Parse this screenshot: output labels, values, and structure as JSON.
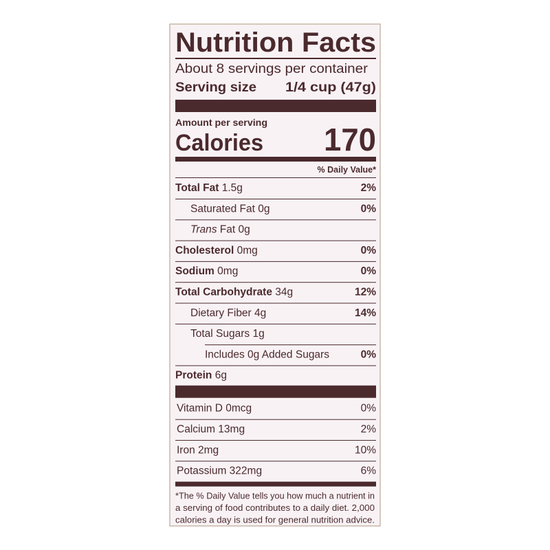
{
  "label": {
    "title": "Nutrition Facts",
    "servings": "About 8 servings per container",
    "serving_size_label": "Serving size",
    "serving_size_value": "1/4 cup (47g)",
    "amount_per_serving": "Amount per serving",
    "calories_label": "Calories",
    "calories_value": 170,
    "dv_header": "% Daily Value*",
    "nutrients": [
      {
        "name": "Total Fat",
        "amount": "1.5g",
        "dv": "2%",
        "bold": true,
        "indent": 0
      },
      {
        "name": "Saturated Fat",
        "amount": "0g",
        "dv": "0%",
        "bold": false,
        "indent": 1
      },
      {
        "name": "Trans",
        "amount": "Fat 0g",
        "bold": false,
        "italic": true,
        "indent": 1
      },
      {
        "name": "Cholesterol",
        "amount": "0mg",
        "dv": "0%",
        "bold": true,
        "indent": 0
      },
      {
        "name": "Sodium",
        "amount": "0mg",
        "dv": "0%",
        "bold": true,
        "indent": 0
      },
      {
        "name": "Total Carbohydrate",
        "amount": "34g",
        "dv": "12%",
        "bold": true,
        "indent": 0
      },
      {
        "name": "Dietary Fiber",
        "amount": "4g",
        "dv": "14%",
        "bold": false,
        "indent": 1
      },
      {
        "name": "Total Sugars",
        "amount": "1g",
        "bold": false,
        "indent": 1
      },
      {
        "name": "Includes 0g Added Sugars",
        "dv": "0%",
        "bold": false,
        "indent": 2
      },
      {
        "name": "Protein",
        "amount": "6g",
        "bold": true,
        "indent": 0
      }
    ],
    "vitamins": [
      {
        "name": "Vitamin D 0mcg",
        "dv": "0%"
      },
      {
        "name": "Calcium 13mg",
        "dv": "2%"
      },
      {
        "name": "Iron 2mg",
        "dv": "10%"
      },
      {
        "name": "Potassium 322mg",
        "dv": "6%"
      }
    ],
    "footnote": [
      "*The % Daily Value tells you how much a nutrient in",
      "a serving of food contributes to a daily diet. 2,000",
      "calories a day is used for general nutrition advice."
    ]
  }
}
